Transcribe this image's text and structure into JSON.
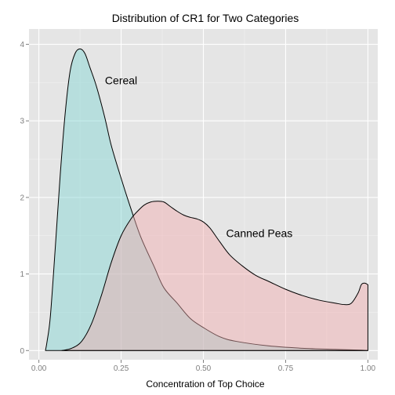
{
  "chart_data": {
    "type": "area",
    "title": "Distribution of CR1 for Two Categories",
    "xlabel": "Concentration of Top Choice",
    "ylabel": "",
    "xlim": [
      -0.03,
      1.03
    ],
    "ylim": [
      -0.12,
      4.2
    ],
    "x_ticks": [
      0.0,
      0.25,
      0.5,
      0.75,
      1.0
    ],
    "x_tick_labels": [
      "0.00",
      "0.25",
      "0.50",
      "0.75",
      "1.00"
    ],
    "y_ticks": [
      0,
      1,
      2,
      3,
      4
    ],
    "y_tick_labels": [
      "0",
      "1",
      "2",
      "3",
      "4"
    ],
    "grid": true,
    "series": [
      {
        "name": "Cereal",
        "color": "#7fd5d2",
        "x": [
          0.02,
          0.025,
          0.035,
          0.05,
          0.065,
          0.08,
          0.095,
          0.11,
          0.125,
          0.14,
          0.155,
          0.175,
          0.2,
          0.22,
          0.25,
          0.28,
          0.31,
          0.35,
          0.38,
          0.42,
          0.46,
          0.5,
          0.55,
          0.6,
          0.7,
          0.8,
          0.9,
          0.98,
          1.0
        ],
        "values": [
          0.0,
          0.12,
          0.45,
          1.35,
          2.3,
          3.1,
          3.65,
          3.88,
          3.94,
          3.88,
          3.7,
          3.45,
          3.05,
          2.68,
          2.25,
          1.85,
          1.48,
          1.1,
          0.82,
          0.62,
          0.42,
          0.3,
          0.18,
          0.12,
          0.06,
          0.03,
          0.015,
          0.005,
          0.0
        ]
      },
      {
        "name": "Canned Peas",
        "color": "#f2aaad",
        "x": [
          0.07,
          0.1,
          0.13,
          0.16,
          0.19,
          0.22,
          0.25,
          0.28,
          0.3,
          0.32,
          0.34,
          0.36,
          0.38,
          0.4,
          0.42,
          0.44,
          0.46,
          0.48,
          0.5,
          0.52,
          0.55,
          0.58,
          0.62,
          0.66,
          0.7,
          0.75,
          0.8,
          0.85,
          0.9,
          0.93,
          0.95,
          0.97,
          0.98,
          0.99,
          1.0
        ],
        "values": [
          0.0,
          0.03,
          0.12,
          0.35,
          0.72,
          1.15,
          1.5,
          1.72,
          1.82,
          1.9,
          1.94,
          1.95,
          1.94,
          1.88,
          1.82,
          1.77,
          1.74,
          1.72,
          1.68,
          1.6,
          1.42,
          1.25,
          1.1,
          0.98,
          0.9,
          0.8,
          0.72,
          0.66,
          0.62,
          0.6,
          0.62,
          0.75,
          0.86,
          0.88,
          0.86
        ]
      }
    ],
    "annotations": [
      {
        "text": "Cereal",
        "x": 0.25,
        "y": 3.48
      },
      {
        "text": "Canned Peas",
        "x": 0.67,
        "y": 1.48
      }
    ]
  }
}
